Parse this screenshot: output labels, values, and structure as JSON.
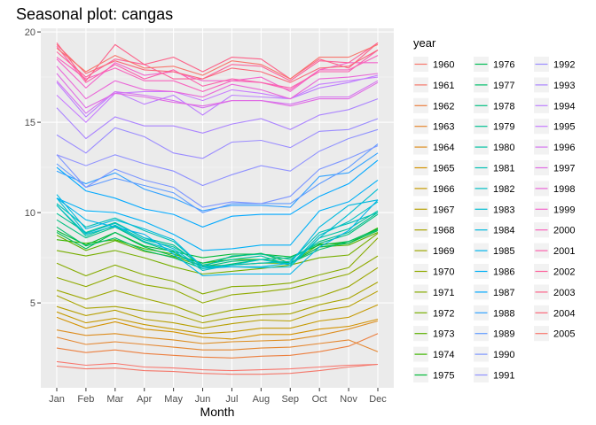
{
  "chart_data": {
    "type": "line",
    "title": "Seasonal plot: cangas",
    "xlabel": "Month",
    "ylabel": "",
    "categories": [
      "Jan",
      "Feb",
      "Mar",
      "Apr",
      "May",
      "Jun",
      "Jul",
      "Aug",
      "Sep",
      "Oct",
      "Nov",
      "Dec"
    ],
    "ylim": [
      0.3,
      20.2
    ],
    "yticks": [
      5,
      10,
      15,
      20
    ],
    "legend_title": "year",
    "legend_position": "right",
    "grid": true,
    "series": [
      {
        "name": "1960",
        "color": "#F8766D",
        "values": [
          1.75,
          1.55,
          1.65,
          1.45,
          1.4,
          1.3,
          1.25,
          1.3,
          1.35,
          1.45,
          1.55,
          1.6
        ]
      },
      {
        "name": "1961",
        "color": "#F4776A",
        "values": [
          1.5,
          1.35,
          1.4,
          1.25,
          1.2,
          1.1,
          1.05,
          1.05,
          1.1,
          1.25,
          1.45,
          1.6
        ]
      },
      {
        "name": "1962",
        "color": "#EC7F3F",
        "values": [
          2.5,
          2.25,
          2.4,
          2.2,
          2.1,
          2.0,
          1.95,
          2.05,
          2.1,
          2.3,
          2.6,
          3.3
        ]
      },
      {
        "name": "1963",
        "color": "#E5862F",
        "values": [
          3.1,
          2.7,
          2.85,
          2.7,
          2.55,
          2.4,
          2.4,
          2.5,
          2.55,
          2.75,
          2.95,
          2.3
        ]
      },
      {
        "name": "1964",
        "color": "#DD8D1F",
        "values": [
          3.5,
          3.2,
          3.3,
          3.1,
          2.95,
          2.75,
          2.85,
          2.9,
          2.95,
          3.2,
          3.55,
          4.0
        ]
      },
      {
        "name": "1965",
        "color": "#D39200",
        "values": [
          4.2,
          3.6,
          3.95,
          3.55,
          3.4,
          3.1,
          3.0,
          3.25,
          3.25,
          3.55,
          3.7,
          4.1
        ]
      },
      {
        "name": "1966",
        "color": "#C59900",
        "values": [
          4.5,
          3.9,
          4.15,
          3.8,
          3.55,
          3.3,
          3.4,
          3.6,
          3.6,
          4.0,
          4.2,
          4.9
        ]
      },
      {
        "name": "1967",
        "color": "#B79F00",
        "values": [
          4.8,
          4.3,
          4.6,
          4.1,
          3.9,
          3.6,
          3.85,
          4.05,
          4.0,
          4.55,
          4.8,
          5.65
        ]
      },
      {
        "name": "1968",
        "color": "#A8A400",
        "values": [
          5.4,
          4.7,
          4.8,
          4.55,
          4.4,
          3.9,
          4.2,
          4.35,
          4.4,
          4.9,
          5.25,
          6.15
        ]
      },
      {
        "name": "1969",
        "color": "#9CA700",
        "values": [
          5.7,
          5.2,
          5.7,
          5.25,
          4.85,
          4.25,
          4.6,
          4.8,
          4.95,
          5.35,
          5.9,
          6.95
        ]
      },
      {
        "name": "1970",
        "color": "#90AA00",
        "values": [
          6.4,
          5.9,
          6.5,
          6.0,
          5.75,
          5.0,
          5.45,
          5.6,
          5.8,
          6.2,
          6.6,
          7.6
        ]
      },
      {
        "name": "1971",
        "color": "#86AB00",
        "values": [
          7.2,
          6.5,
          7.1,
          6.55,
          6.2,
          5.5,
          5.9,
          5.95,
          6.1,
          6.55,
          6.95,
          8.6
        ]
      },
      {
        "name": "1972",
        "color": "#77AE00",
        "values": [
          7.9,
          7.6,
          7.9,
          7.5,
          7.0,
          6.6,
          6.75,
          6.9,
          7.1,
          7.5,
          7.65,
          8.85
        ]
      },
      {
        "name": "1973",
        "color": "#5DB000",
        "values": [
          8.75,
          7.9,
          8.45,
          7.85,
          7.55,
          7.05,
          7.1,
          7.2,
          7.2,
          8.1,
          8.2,
          8.9
        ]
      },
      {
        "name": "1974",
        "color": "#3DB600",
        "values": [
          8.5,
          8.3,
          8.5,
          8.0,
          7.7,
          7.2,
          7.4,
          7.4,
          7.2,
          8.25,
          8.3,
          9.15
        ]
      },
      {
        "name": "1975",
        "color": "#00BA38",
        "values": [
          9.0,
          8.2,
          8.9,
          8.15,
          7.85,
          7.5,
          7.7,
          7.7,
          7.55,
          8.2,
          8.4,
          9.1
        ]
      },
      {
        "name": "1976",
        "color": "#00BC55",
        "values": [
          8.9,
          8.0,
          8.9,
          8.1,
          7.6,
          7.2,
          7.55,
          7.75,
          7.2,
          8.1,
          8.3,
          9.0
        ]
      },
      {
        "name": "1977",
        "color": "#00BE6B",
        "values": [
          9.2,
          8.15,
          8.6,
          7.9,
          7.5,
          6.9,
          7.15,
          7.4,
          7.2,
          7.95,
          8.4,
          9.05
        ]
      },
      {
        "name": "1978",
        "color": "#00BF80",
        "values": [
          9.6,
          8.6,
          9.2,
          8.35,
          7.8,
          7.0,
          7.3,
          7.4,
          7.5,
          8.3,
          8.8,
          9.9
        ]
      },
      {
        "name": "1979",
        "color": "#00C091",
        "values": [
          9.95,
          8.9,
          9.45,
          8.6,
          8.2,
          7.0,
          7.6,
          7.7,
          7.4,
          8.4,
          8.9,
          10.0
        ]
      },
      {
        "name": "1980",
        "color": "#00C1A3",
        "values": [
          10.4,
          8.7,
          9.3,
          8.5,
          8.1,
          7.1,
          7.4,
          7.6,
          7.1,
          8.6,
          9.1,
          10.1
        ]
      },
      {
        "name": "1981",
        "color": "#00C0B4",
        "values": [
          10.5,
          9.2,
          9.7,
          9.0,
          8.4,
          7.0,
          7.1,
          7.2,
          7.3,
          8.9,
          9.4,
          10.0
        ]
      },
      {
        "name": "1982",
        "color": "#00BFC4",
        "values": [
          10.4,
          8.8,
          9.25,
          8.4,
          7.9,
          6.8,
          7.1,
          7.4,
          7.1,
          8.75,
          9.5,
          10.6
        ]
      },
      {
        "name": "1983",
        "color": "#00BDD2",
        "values": [
          10.8,
          8.85,
          9.4,
          8.6,
          8.0,
          6.9,
          7.0,
          6.95,
          7.0,
          8.6,
          9.9,
          11.3
        ]
      },
      {
        "name": "1984",
        "color": "#00B9DF",
        "values": [
          11.0,
          9.1,
          9.6,
          9.1,
          8.5,
          7.0,
          7.0,
          7.0,
          7.2,
          9.2,
          10.4,
          10.7
        ]
      },
      {
        "name": "1985",
        "color": "#00B4EB",
        "values": [
          10.8,
          9.6,
          9.2,
          8.8,
          7.7,
          6.5,
          6.6,
          6.6,
          6.6,
          8.1,
          9.0,
          10.7
        ]
      },
      {
        "name": "1986",
        "color": "#00B0F6",
        "values": [
          10.8,
          10.1,
          10.0,
          9.5,
          8.8,
          7.9,
          8.0,
          8.2,
          8.2,
          10.1,
          10.6,
          11.8
        ]
      },
      {
        "name": "1987",
        "color": "#00A8FF",
        "values": [
          12.5,
          11.2,
          10.8,
          10.2,
          9.9,
          9.2,
          9.8,
          9.9,
          9.9,
          10.9,
          11.6,
          12.9
        ]
      },
      {
        "name": "1988",
        "color": "#30A1FF",
        "values": [
          12.3,
          11.6,
          12.2,
          11.3,
          10.8,
          10.1,
          10.4,
          10.4,
          10.3,
          12.0,
          12.2,
          13.3
        ]
      },
      {
        "name": "1989",
        "color": "#619CFF",
        "values": [
          12.7,
          11.4,
          11.9,
          11.5,
          11.1,
          10.0,
          10.5,
          10.5,
          10.5,
          11.6,
          12.5,
          13.8
        ]
      },
      {
        "name": "1990",
        "color": "#7D96FF",
        "values": [
          13.2,
          11.4,
          12.4,
          11.8,
          11.4,
          10.3,
          10.6,
          10.5,
          10.9,
          12.4,
          13.0,
          13.7
        ]
      },
      {
        "name": "1991",
        "color": "#8F91FF",
        "values": [
          13.2,
          12.6,
          13.2,
          12.7,
          12.3,
          11.5,
          12.1,
          12.6,
          12.3,
          13.4,
          14.1,
          14.6
        ]
      },
      {
        "name": "1992",
        "color": "#9B8CFF",
        "values": [
          14.3,
          13.3,
          14.7,
          14.2,
          13.3,
          13.0,
          13.9,
          14.0,
          13.6,
          14.5,
          14.6,
          15.2
        ]
      },
      {
        "name": "1993",
        "color": "#AB84FF",
        "values": [
          15.8,
          14.1,
          15.3,
          14.8,
          14.8,
          14.4,
          14.9,
          15.2,
          14.6,
          15.4,
          15.7,
          16.3
        ]
      },
      {
        "name": "1994",
        "color": "#BC7EFF",
        "values": [
          17.2,
          15.3,
          16.7,
          16.0,
          16.5,
          15.4,
          16.5,
          16.4,
          16.3,
          16.9,
          17.2,
          17.6
        ]
      },
      {
        "name": "1995",
        "color": "#C77CFF",
        "values": [
          16.5,
          15.0,
          16.6,
          16.7,
          16.7,
          16.2,
          16.8,
          16.6,
          16.3,
          17.1,
          17.3,
          17.5
        ]
      },
      {
        "name": "1996",
        "color": "#D474F0",
        "values": [
          17.3,
          15.5,
          16.7,
          16.5,
          16.2,
          15.8,
          16.2,
          16.2,
          16.0,
          16.4,
          16.4,
          17.3
        ]
      },
      {
        "name": "1997",
        "color": "#E06CE4",
        "values": [
          17.7,
          15.8,
          16.6,
          16.4,
          16.1,
          15.9,
          16.2,
          16.2,
          15.9,
          16.3,
          16.3,
          17.2
        ]
      },
      {
        "name": "1998",
        "color": "#EA67D8",
        "values": [
          18.1,
          16.3,
          17.3,
          16.8,
          16.7,
          16.4,
          17.1,
          16.8,
          16.3,
          17.4,
          17.5,
          17.7
        ]
      },
      {
        "name": "1999",
        "color": "#F365CB",
        "values": [
          18.5,
          16.9,
          18.3,
          17.6,
          17.8,
          17.3,
          17.3,
          17.5,
          16.7,
          17.9,
          18.3,
          18.3
        ]
      },
      {
        "name": "2000",
        "color": "#F864BD",
        "values": [
          18.6,
          17.4,
          18.0,
          17.3,
          17.3,
          16.7,
          17.3,
          17.2,
          16.8,
          17.9,
          17.9,
          18.7
        ]
      },
      {
        "name": "2001",
        "color": "#FB61AC",
        "values": [
          19.2,
          17.2,
          18.2,
          17.4,
          17.9,
          17.0,
          17.4,
          17.2,
          16.9,
          17.8,
          17.8,
          19.0
        ]
      },
      {
        "name": "2002",
        "color": "#FD619B",
        "values": [
          18.9,
          17.5,
          18.5,
          18.2,
          17.4,
          17.4,
          18.2,
          18.1,
          17.3,
          18.4,
          18.3,
          19.4
        ]
      },
      {
        "name": "2003",
        "color": "#FC6289",
        "values": [
          19.4,
          17.3,
          19.3,
          18.2,
          18.6,
          17.8,
          18.6,
          18.5,
          17.4,
          18.5,
          18.0,
          19.4
        ]
      },
      {
        "name": "2004",
        "color": "#FA6678",
        "values": [
          19.3,
          17.7,
          18.4,
          17.9,
          17.8,
          17.4,
          18.0,
          17.8,
          17.2,
          18.0,
          18.1,
          19.0
        ]
      },
      {
        "name": "2005",
        "color": "#F8766D",
        "values": [
          19.1,
          17.8,
          18.7,
          18.0,
          18.1,
          17.6,
          18.4,
          18.2,
          17.4,
          18.6,
          18.6,
          19.3
        ]
      }
    ]
  }
}
